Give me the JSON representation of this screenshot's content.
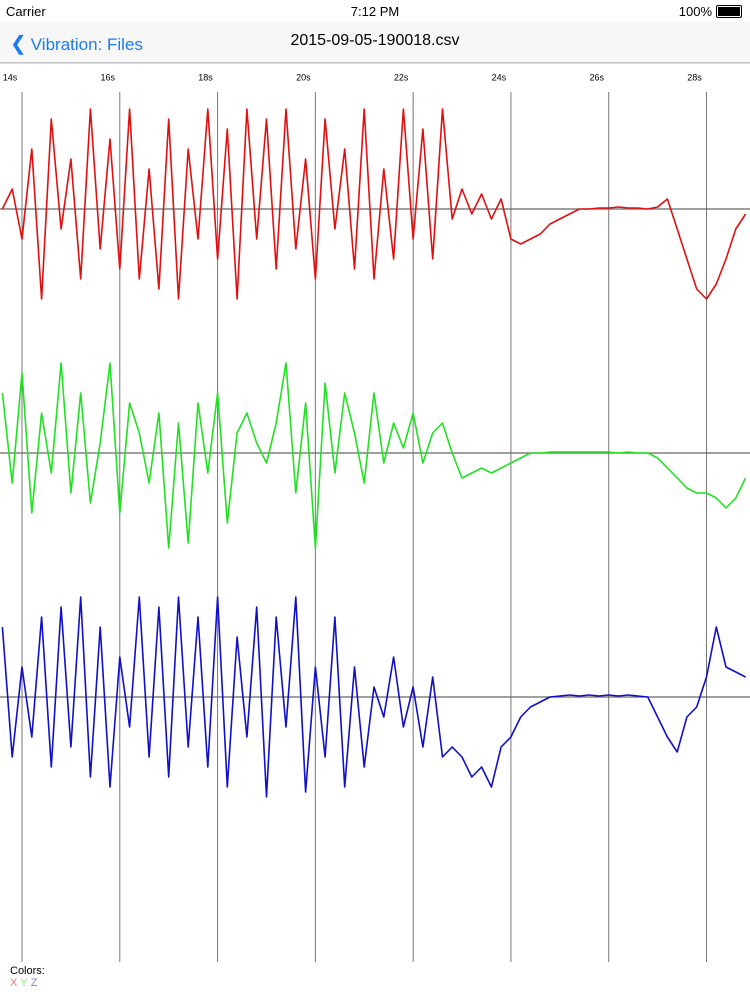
{
  "status_bar": {
    "carrier": "Carrier",
    "time": "7:12 PM",
    "battery": "100%"
  },
  "nav_bar": {
    "back": "Vibration: Files",
    "title": "2015-09-05-190018.csv"
  },
  "footer": {
    "label": "Colors:"
  },
  "chart_data": {
    "type": "line",
    "x": [
      13.6,
      13.8,
      14.0,
      14.2,
      14.4,
      14.6,
      14.8,
      15.0,
      15.2,
      15.4,
      15.6,
      15.8,
      16.0,
      16.2,
      16.4,
      16.6,
      16.8,
      17.0,
      17.2,
      17.4,
      17.6,
      17.8,
      18.0,
      18.2,
      18.4,
      18.6,
      18.8,
      19.0,
      19.2,
      19.4,
      19.6,
      19.8,
      20.0,
      20.2,
      20.4,
      20.6,
      20.8,
      21.0,
      21.2,
      21.4,
      21.6,
      21.8,
      22.0,
      22.2,
      22.4,
      22.6,
      22.8,
      23.0,
      23.2,
      23.4,
      23.6,
      23.8,
      24.0,
      24.2,
      24.4,
      24.6,
      24.8,
      25.0,
      25.2,
      25.4,
      25.6,
      25.8,
      26.0,
      26.2,
      26.4,
      26.6,
      26.8,
      27.0,
      27.2,
      27.4,
      27.6,
      27.8,
      28.0,
      28.2,
      28.4,
      28.6,
      28.8
    ],
    "xlim": [
      13.55,
      28.89
    ],
    "xticks": [
      {
        "value": 14,
        "label": "14s"
      },
      {
        "value": 16,
        "label": "16s"
      },
      {
        "value": 18,
        "label": "18s"
      },
      {
        "value": 20,
        "label": "20s"
      },
      {
        "value": 22,
        "label": "22s"
      },
      {
        "value": 24,
        "label": "24s"
      },
      {
        "value": 26,
        "label": "26s"
      },
      {
        "value": 28,
        "label": "28s"
      }
    ],
    "ylim": [
      -1.22,
      1.22
    ],
    "reference_line": 0,
    "grid": true,
    "series": [
      {
        "name": "X",
        "color": "#e01010",
        "values": [
          0.0,
          0.2,
          -0.3,
          0.6,
          -0.9,
          0.9,
          -0.2,
          0.5,
          -0.7,
          1.0,
          -0.4,
          0.7,
          -0.6,
          1.0,
          -0.7,
          0.4,
          -0.8,
          0.9,
          -0.9,
          0.6,
          -0.3,
          1.0,
          -0.5,
          0.8,
          -0.9,
          1.0,
          -0.3,
          0.9,
          -0.6,
          1.0,
          -0.4,
          0.5,
          -0.7,
          0.9,
          -0.2,
          0.6,
          -0.6,
          1.0,
          -0.7,
          0.4,
          -0.5,
          1.0,
          -0.3,
          0.8,
          -0.5,
          1.0,
          -0.1,
          0.2,
          -0.05,
          0.15,
          -0.1,
          0.1,
          -0.3,
          -0.35,
          -0.3,
          -0.25,
          -0.15,
          -0.1,
          -0.05,
          0,
          0.0,
          0.01,
          0.01,
          0.02,
          0.01,
          0.01,
          0.0,
          0.02,
          0.1,
          -0.2,
          -0.5,
          -0.8,
          -0.9,
          -0.75,
          -0.5,
          -0.2,
          -0.05
        ]
      },
      {
        "name": "Y",
        "color": "#22e022",
        "values": [
          0.6,
          -0.3,
          0.8,
          -0.6,
          0.4,
          -0.2,
          0.9,
          -0.4,
          0.6,
          -0.5,
          0.1,
          0.9,
          -0.6,
          0.5,
          0.2,
          -0.3,
          0.4,
          -0.95,
          0.3,
          -0.9,
          0.5,
          -0.2,
          0.6,
          -0.7,
          0.2,
          0.4,
          0.1,
          -0.1,
          0.3,
          0.9,
          -0.4,
          0.5,
          -0.95,
          0.7,
          -0.2,
          0.6,
          0.2,
          -0.3,
          0.6,
          -0.1,
          0.3,
          0.05,
          0.4,
          -0.1,
          0.2,
          0.3,
          0.0,
          -0.25,
          -0.2,
          -0.15,
          -0.2,
          -0.15,
          -0.1,
          -0.05,
          0.0,
          0.0,
          0.01,
          0.01,
          0.01,
          0.01,
          0.01,
          0.01,
          0.01,
          0.0,
          0.01,
          0.0,
          0.0,
          -0.05,
          -0.15,
          -0.25,
          -0.35,
          -0.4,
          -0.4,
          -0.45,
          -0.55,
          -0.45,
          -0.25
        ]
      },
      {
        "name": "Z",
        "color": "#1010c8",
        "values": [
          0.7,
          -0.6,
          0.3,
          -0.4,
          0.8,
          -0.7,
          0.9,
          -0.5,
          1.0,
          -0.8,
          0.7,
          -0.9,
          0.4,
          -0.3,
          1.0,
          -0.6,
          0.9,
          -0.8,
          1.0,
          -0.5,
          0.8,
          -0.7,
          1.0,
          -0.9,
          0.6,
          -0.4,
          0.9,
          -1.0,
          0.8,
          -0.3,
          1.0,
          -0.95,
          0.3,
          -0.6,
          0.8,
          -0.9,
          0.3,
          -0.7,
          0.1,
          -0.2,
          0.4,
          -0.3,
          0.1,
          -0.5,
          0.2,
          -0.6,
          -0.5,
          -0.6,
          -0.8,
          -0.7,
          -0.9,
          -0.5,
          -0.4,
          -0.2,
          -0.1,
          -0.05,
          0.0,
          0.01,
          0.02,
          0.01,
          0.02,
          0.01,
          0.02,
          0.01,
          0.02,
          0.01,
          0.0,
          -0.2,
          -0.4,
          -0.55,
          -0.2,
          -0.1,
          0.2,
          0.7,
          0.3,
          0.25,
          0.2
        ]
      }
    ]
  }
}
